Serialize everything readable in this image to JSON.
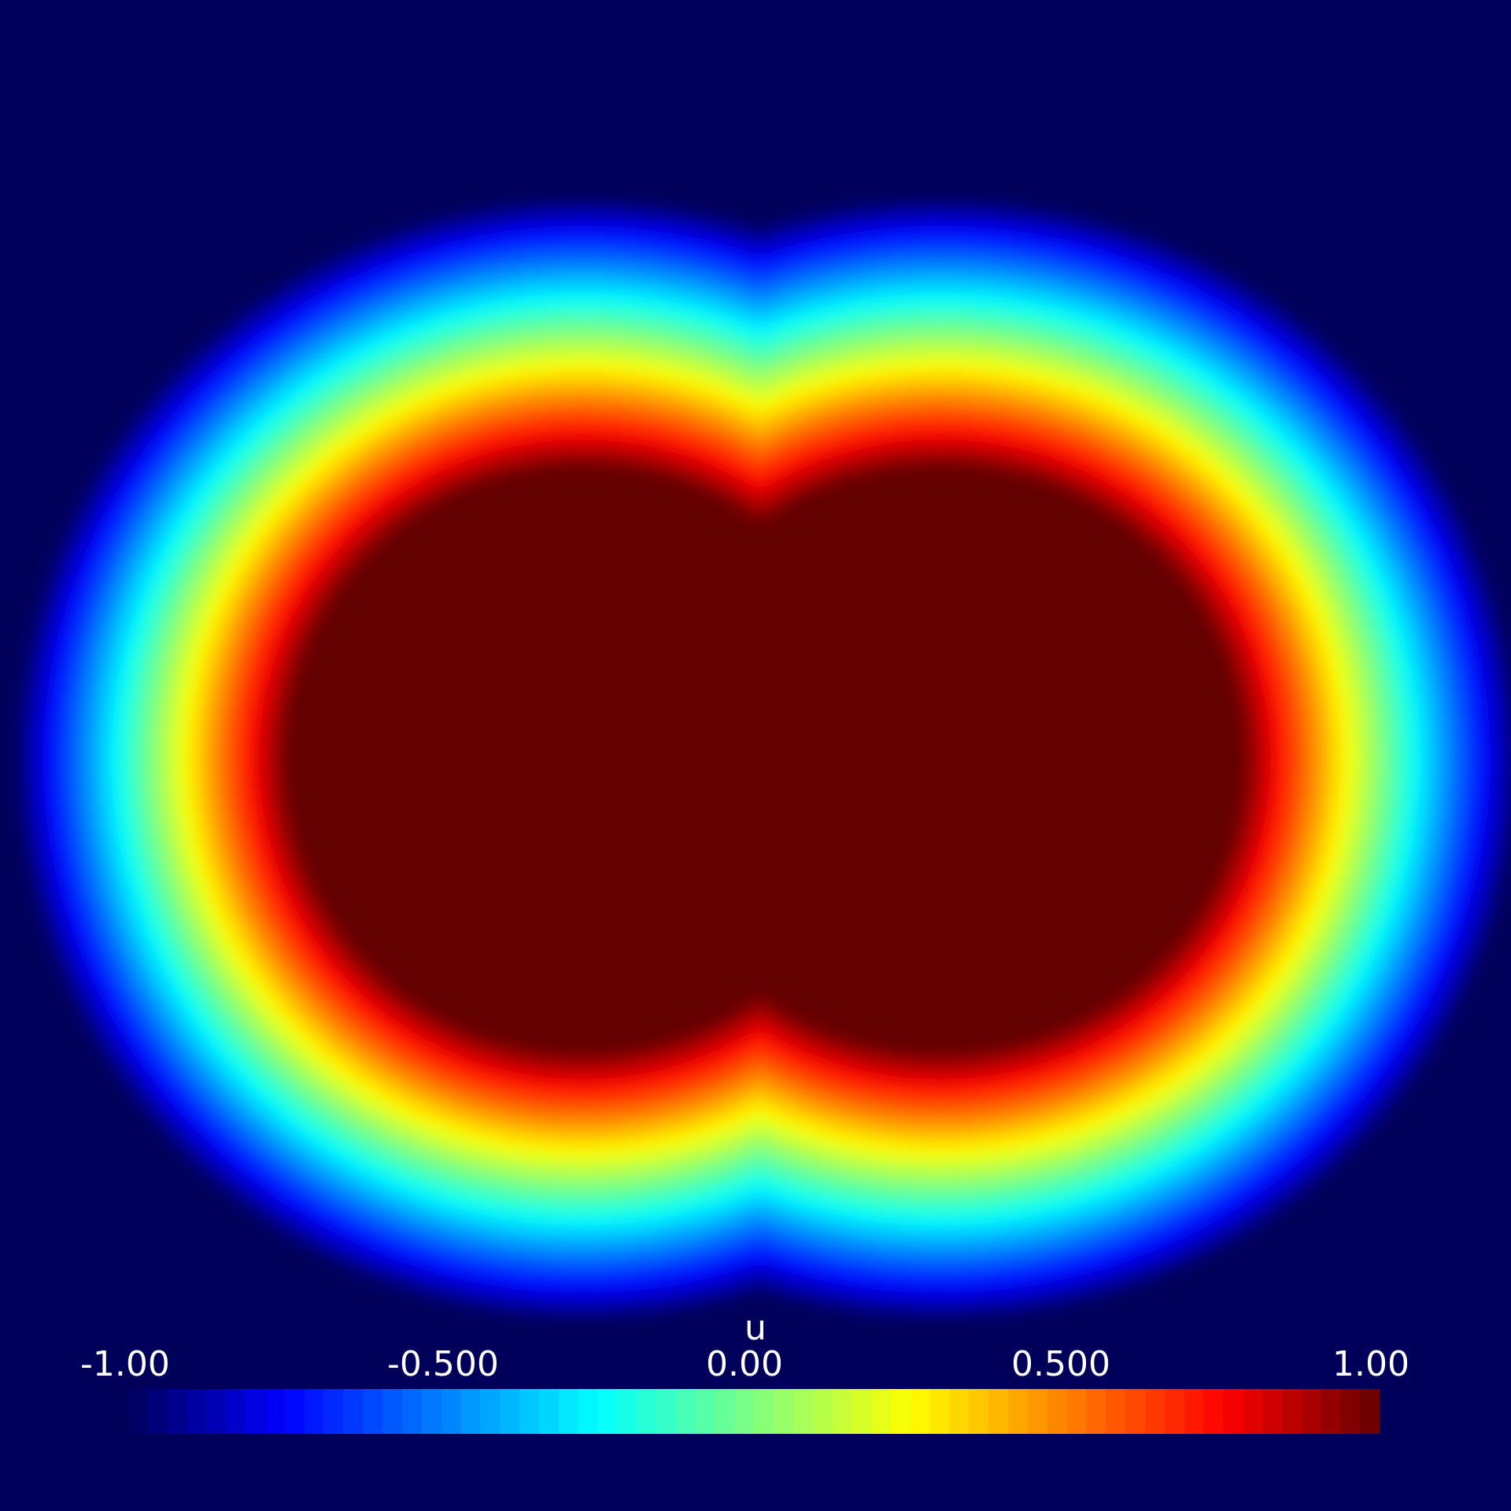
{
  "scalar_bar": {
    "title": "u",
    "ticks": [
      "-1.00",
      "-0.500",
      "0.00",
      "0.500",
      "1.00"
    ],
    "range": [
      -1.0,
      1.0
    ],
    "colormap": "jet",
    "num_bands": 64
  },
  "colors": {
    "background": "#00005a",
    "plateau": "#640000",
    "label": "#ffffff"
  },
  "field": {
    "shape": "two overlapping circular blobs side by side",
    "interior_value": 1.0,
    "exterior_value": -1.0
  }
}
